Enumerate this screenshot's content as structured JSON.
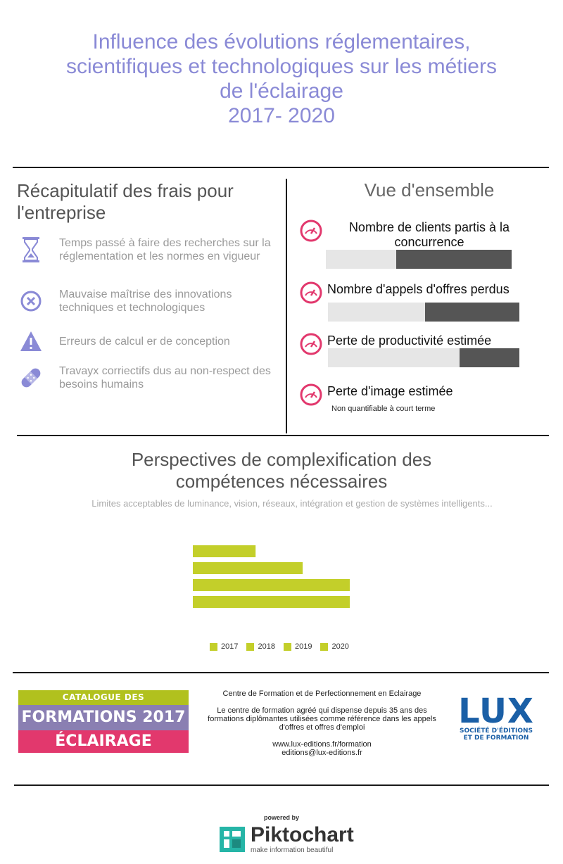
{
  "header": {
    "title_lines": [
      "Influence des évolutions réglementaires,",
      "scientifiques et technologiques sur les métiers",
      "de l'éclairage",
      "2017- 2020"
    ]
  },
  "recap": {
    "title": "Récapitulatif des frais pour l'entreprise",
    "items": [
      {
        "icon": "hourglass-icon",
        "text": "Temps passé à faire des recherches sur la réglementation et les normes en vigueur"
      },
      {
        "icon": "x-circle-icon",
        "text": "Mauvaise maîtrise des innovations techniques et technologiques"
      },
      {
        "icon": "warning-icon",
        "text": "Erreurs de calcul er de conception"
      },
      {
        "icon": "bandage-icon",
        "text": "Travayx corriectifs dus au non-respect des besoins humains"
      }
    ]
  },
  "vue": {
    "title": "Vue d'ensemble",
    "metrics": [
      {
        "label": "Nombre de clients partis à la concurrence",
        "fill_fraction": 0.62
      },
      {
        "label": "Nombre d'appels d'offres perdus",
        "fill_fraction": 0.49
      },
      {
        "label": "Perte de productivité estimée",
        "fill_fraction": 0.31
      },
      {
        "label": "Perte d'image estimée",
        "note": "Non quantifiable à court terme"
      }
    ]
  },
  "perspectives": {
    "title_lines": [
      "Perspectives de complexification des",
      "compétences nécessaires"
    ],
    "subtitle": "Limites acceptables de luminance, vision, réseaux, intégration et gestion de systèmes intelligents..."
  },
  "chart_data": {
    "type": "bar",
    "orientation": "horizontal",
    "categories": [
      "2017",
      "2018",
      "2019",
      "2020"
    ],
    "values": [
      40,
      70,
      100,
      100
    ],
    "legend": [
      "2017",
      "2018",
      "2019",
      "2020"
    ],
    "legend_position": "bottom",
    "color": "#c3cf2a",
    "grid": false
  },
  "footer": {
    "catalogue": [
      "CATALOGUE DES",
      "FORMATIONS 2017",
      "ÉCLAIRAGE"
    ],
    "info": {
      "title": "Centre de Formation et de Perfectionnement en Eclairage",
      "description": "Le centre de formation agréé qui dispense depuis 35 ans des formations diplômantes utilisées comme référence dans les appels d'offres et offres d'emploi",
      "website": "www.lux-editions.fr/formation",
      "email": "editions@lux-editions.fr"
    },
    "lux": {
      "name": "LUX",
      "line1": "SOCIÉTÉ D'ÉDITIONS",
      "line2": "ET DE FORMATION"
    }
  },
  "powered": {
    "label": "powered by",
    "brand": "Piktochart",
    "tagline": "make information beautiful"
  },
  "colors": {
    "title": "#8a8ad6",
    "icon": "#8a8ad6",
    "gauge": "#e2386d",
    "bar": "#c3cf2a",
    "fill": "#555555",
    "track": "#e6e6e6"
  }
}
